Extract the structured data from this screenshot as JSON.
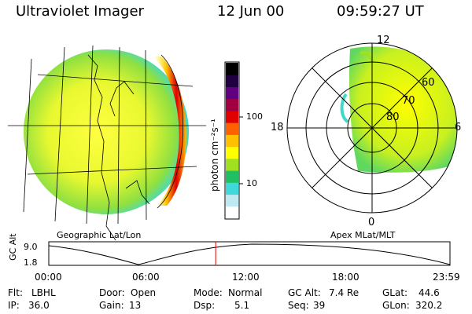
{
  "header": {
    "instrument": "Ultraviolet Imager",
    "date": "12 Jun 00",
    "time": "09:59:27 UT"
  },
  "panels": {
    "geo_label": "Geographic Lat/Lon",
    "apex_label": "Apex MLat/MLT"
  },
  "colorbar": {
    "unit_label": "photon cm⁻²s⁻¹",
    "ticks": [
      "100",
      "10"
    ],
    "colors": [
      "#ffffff",
      "#bfe8f0",
      "#40d8d8",
      "#20c060",
      "#a0e020",
      "#ffff00",
      "#ffc000",
      "#ff6000",
      "#e00000",
      "#a00040",
      "#600080",
      "#200040",
      "#000000"
    ]
  },
  "polar": {
    "mlt_labels": [
      "12",
      "18",
      "6",
      "0"
    ],
    "mlat_labels": [
      "60",
      "70",
      "80"
    ]
  },
  "timeline": {
    "axis_label": "GC Alt",
    "ticks_y": [
      "9.0",
      "1.8"
    ],
    "ticks_x": [
      "00:00",
      "06:00",
      "12:00",
      "18:00",
      "23:59"
    ],
    "current_time_fraction": 0.416
  },
  "footer": {
    "row1": [
      {
        "key": "Flt:",
        "value": "LBHL"
      },
      {
        "key": "Door:",
        "value": "Open"
      },
      {
        "key": "Mode:",
        "value": "Normal"
      },
      {
        "key": "GC Alt:",
        "value": "7.4 Re"
      },
      {
        "key": "GLat:",
        "value": "44.6"
      }
    ],
    "row2": [
      {
        "key": "IP:",
        "value": "36.0"
      },
      {
        "key": "Gain:",
        "value": "13"
      },
      {
        "key": "Dsp:",
        "value": "5.1"
      },
      {
        "key": "Seq:",
        "value": "39"
      },
      {
        "key": "GLon:",
        "value": "320.2"
      }
    ]
  }
}
